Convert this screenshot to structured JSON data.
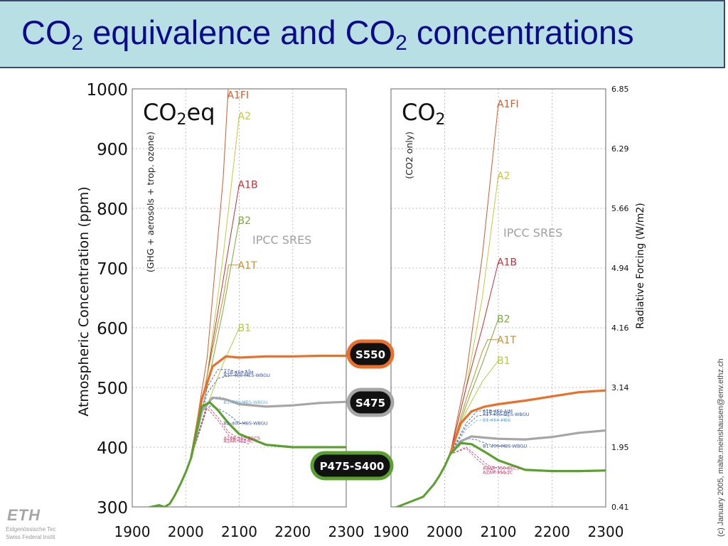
{
  "slide": {
    "title_prefix": "CO",
    "title_sub1": "2",
    "title_middle": " equivalence and CO",
    "title_sub2": "2",
    "title_suffix": " concentrations",
    "copyright": "(c) January 2005, malte.meinshausen@env.ethz.ch",
    "logo_text": "ETH",
    "logo_line1": "Eidgenössische Tec",
    "logo_line2": "Swiss Federal Instit"
  },
  "chart_data": [
    {
      "type": "line",
      "panel": "left",
      "title_main": "CO",
      "title_sub": "2",
      "title_tail": "eq",
      "note": "(GHG + aerosols + trop. ozone)",
      "ylabel": "Atmospheric Concentration (ppm)",
      "xlim": [
        1900,
        2300
      ],
      "ylim": [
        300,
        1000
      ],
      "xticks": [
        1900,
        2000,
        2100,
        2200,
        2300
      ],
      "yticks": [
        300,
        400,
        500,
        600,
        700,
        800,
        900,
        1000
      ],
      "grid": true,
      "sres_label": "IPCC SRES",
      "historical": {
        "x": [
          1900,
          1910,
          1920,
          1940,
          1950,
          1960,
          1970,
          1980,
          1990,
          2000,
          2010
        ],
        "y": [
          293,
          292,
          297,
          301,
          303,
          300,
          305,
          320,
          338,
          358,
          382
        ]
      },
      "sres_scenarios": [
        {
          "name": "A1FI",
          "color": "#d35a2a",
          "x": [
            2010,
            2040,
            2070,
            2080
          ],
          "y": [
            382,
            550,
            850,
            1010
          ]
        },
        {
          "name": "A2",
          "color": "#c6c83a",
          "x": [
            2010,
            2040,
            2070,
            2100
          ],
          "y": [
            382,
            520,
            720,
            955
          ]
        },
        {
          "name": "A1B",
          "color": "#c0303a",
          "x": [
            2010,
            2040,
            2070,
            2100
          ],
          "y": [
            382,
            520,
            680,
            840
          ]
        },
        {
          "name": "B2",
          "color": "#7aaa3a",
          "x": [
            2010,
            2040,
            2070,
            2100
          ],
          "y": [
            382,
            500,
            630,
            780
          ]
        },
        {
          "name": "A1T",
          "color": "#c8902a",
          "x": [
            2010,
            2040,
            2070,
            2080,
            2100
          ],
          "y": [
            382,
            520,
            650,
            705,
            705
          ]
        },
        {
          "name": "B1",
          "color": "#b0cc40",
          "x": [
            2010,
            2040,
            2070,
            2100
          ],
          "y": [
            382,
            470,
            540,
            600
          ]
        }
      ],
      "minor_paths": [
        {
          "name": "A1B-450-AIM",
          "color": "#3355aa",
          "x": [
            2010,
            2040,
            2060,
            2080,
            2100,
            2120
          ],
          "y": [
            382,
            500,
            530,
            530,
            525,
            530
          ]
        },
        {
          "name": "A1T-450-MES-WBGU",
          "color": "#3355aa",
          "x": [
            2010,
            2040,
            2060,
            2080,
            2100,
            2120
          ],
          "y": [
            382,
            490,
            515,
            520,
            520,
            520
          ]
        },
        {
          "name": "B1-400-MES-WBGU",
          "color": "#66aadd",
          "x": [
            2010,
            2040,
            2060,
            2080,
            2100,
            2120
          ],
          "y": [
            382,
            475,
            485,
            480,
            475,
            475
          ]
        },
        {
          "name": "B2-400-MES-WBGU",
          "color": "#3355aa",
          "x": [
            2010,
            2040,
            2060,
            2080,
            2100,
            2120
          ],
          "y": [
            382,
            470,
            465,
            455,
            440,
            440
          ]
        },
        {
          "name": "A2AR-350-BECS",
          "color": "#cc3366",
          "x": [
            2010,
            2040,
            2060,
            2080,
            2100,
            2120
          ],
          "y": [
            382,
            470,
            450,
            425,
            415,
            410
          ]
        },
        {
          "name": "A2AR-350-TC",
          "color": "#cc3366",
          "x": [
            2010,
            2040,
            2060,
            2080,
            2100,
            2120
          ],
          "y": [
            382,
            465,
            445,
            420,
            410,
            405
          ]
        }
      ],
      "stabilization": [
        {
          "name": "S550",
          "color": "#e8702a",
          "x": [
            2010,
            2030,
            2050,
            2075,
            2100,
            2150,
            2200,
            2250,
            2300
          ],
          "y": [
            382,
            480,
            535,
            552,
            550,
            552,
            552,
            553,
            553
          ]
        },
        {
          "name": "S475",
          "color": "#a6a6a6",
          "x": [
            2010,
            2030,
            2050,
            2075,
            2100,
            2150,
            2200,
            2250,
            2300
          ],
          "y": [
            382,
            460,
            483,
            480,
            472,
            468,
            470,
            474,
            476
          ]
        },
        {
          "name": "P475-S400",
          "color": "#5aa02e",
          "x": [
            2010,
            2030,
            2045,
            2060,
            2080,
            2100,
            2150,
            2200,
            2250,
            2300
          ],
          "y": [
            382,
            468,
            475,
            462,
            440,
            422,
            404,
            400,
            400,
            400
          ]
        }
      ]
    },
    {
      "type": "line",
      "panel": "right",
      "title_main": "CO",
      "title_sub": "2",
      "note": "(CO2 only)",
      "y2label": "Radiative Forcing (W/m2)",
      "xlim": [
        1900,
        2300
      ],
      "ylim": [
        300,
        1000
      ],
      "xticks": [
        1900,
        2000,
        2100,
        2200,
        2300
      ],
      "forcing_ticks": [
        "6.85",
        "6.29",
        "5.66",
        "4.94",
        "4.16",
        "3.14",
        "1.95",
        "0.41"
      ],
      "grid": true,
      "sres_label": "IPCC SRES",
      "historical": {
        "x": [
          1900,
          1920,
          1940,
          1960,
          1980,
          1990,
          2000,
          2010
        ],
        "y": [
          296,
          303,
          310,
          317,
          338,
          352,
          368,
          388
        ]
      },
      "sres_scenarios": [
        {
          "name": "A1FI",
          "color": "#d35a2a",
          "x": [
            2010,
            2040,
            2070,
            2100
          ],
          "y": [
            388,
            520,
            720,
            975
          ]
        },
        {
          "name": "A2",
          "color": "#c6c83a",
          "x": [
            2010,
            2040,
            2070,
            2100
          ],
          "y": [
            388,
            500,
            650,
            855
          ]
        },
        {
          "name": "A1B",
          "color": "#c0303a",
          "x": [
            2010,
            2040,
            2070,
            2100
          ],
          "y": [
            388,
            500,
            600,
            710
          ]
        },
        {
          "name": "B2",
          "color": "#7aaa3a",
          "x": [
            2010,
            2040,
            2070,
            2100
          ],
          "y": [
            388,
            470,
            540,
            615
          ]
        },
        {
          "name": "A1T",
          "color": "#c8902a",
          "x": [
            2010,
            2040,
            2070,
            2080,
            2100
          ],
          "y": [
            388,
            480,
            560,
            580,
            580
          ]
        },
        {
          "name": "B1",
          "color": "#b0cc40",
          "x": [
            2010,
            2040,
            2070,
            2100
          ],
          "y": [
            388,
            460,
            510,
            545
          ]
        }
      ],
      "minor_paths": [
        {
          "name": "A1B-450-AIM",
          "color": "#3355aa",
          "x": [
            2010,
            2040,
            2060,
            2080,
            2100,
            2120
          ],
          "y": [
            388,
            440,
            460,
            462,
            460,
            458
          ]
        },
        {
          "name": "A1T-450-MES-WBGU",
          "color": "#3355aa",
          "x": [
            2010,
            2040,
            2060,
            2080,
            2100,
            2120
          ],
          "y": [
            388,
            435,
            452,
            455,
            455,
            452
          ]
        },
        {
          "name": "B1-450-MES",
          "color": "#66aadd",
          "x": [
            2010,
            2040,
            2060,
            2080,
            2100,
            2120
          ],
          "y": [
            388,
            430,
            445,
            446,
            445,
            445
          ]
        },
        {
          "name": "B1-400-MES-WBGU",
          "color": "#3355aa",
          "x": [
            2010,
            2040,
            2060,
            2080,
            2100,
            2120
          ],
          "y": [
            388,
            415,
            412,
            405,
            402,
            402
          ]
        },
        {
          "name": "AZAR-350-BECS",
          "color": "#cc3366",
          "x": [
            2010,
            2040,
            2060,
            2080,
            2100,
            2120
          ],
          "y": [
            388,
            400,
            385,
            370,
            365,
            365
          ]
        },
        {
          "name": "AZAR-350-TC",
          "color": "#cc3366",
          "x": [
            2010,
            2040,
            2060,
            2080,
            2100,
            2120
          ],
          "y": [
            388,
            398,
            380,
            365,
            358,
            355
          ]
        }
      ],
      "stabilization": [
        {
          "name": "S550",
          "color": "#e8702a",
          "x": [
            2010,
            2030,
            2050,
            2075,
            2100,
            2150,
            2200,
            2250,
            2300
          ],
          "y": [
            388,
            440,
            460,
            468,
            472,
            478,
            485,
            492,
            495
          ]
        },
        {
          "name": "S475",
          "color": "#a6a6a6",
          "x": [
            2010,
            2030,
            2050,
            2075,
            2100,
            2150,
            2200,
            2250,
            2300
          ],
          "y": [
            388,
            410,
            418,
            416,
            414,
            413,
            417,
            424,
            428
          ]
        },
        {
          "name": "P475-S400",
          "color": "#5aa02e",
          "x": [
            2010,
            2030,
            2050,
            2075,
            2100,
            2150,
            2200,
            2250,
            2300
          ],
          "y": [
            388,
            407,
            405,
            392,
            378,
            362,
            360,
            360,
            361
          ]
        }
      ]
    }
  ]
}
